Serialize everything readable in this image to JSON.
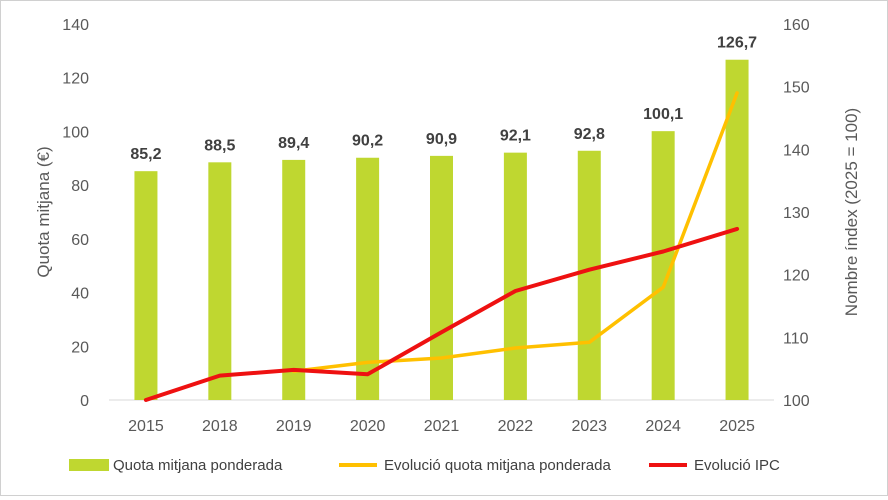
{
  "chart_data": {
    "type": "bar+line",
    "categories": [
      "2015",
      "2018",
      "2019",
      "2020",
      "2021",
      "2022",
      "2023",
      "2024",
      "2025"
    ],
    "bars": {
      "name": "Quota mitjana ponderada",
      "values": [
        85.2,
        88.5,
        89.4,
        90.2,
        90.9,
        92.1,
        92.8,
        100.1,
        126.7
      ],
      "labels": [
        "85,2",
        "88,5",
        "89,4",
        "90,2",
        "90,9",
        "92,1",
        "92,8",
        "100,1",
        "126,7"
      ],
      "color": "#bfd730"
    },
    "lines": [
      {
        "name": "Evolució quota mitjana ponderada",
        "axis": "right",
        "values": [
          null,
          null,
          104.6,
          106.0,
          106.7,
          108.3,
          109.2,
          118.0,
          149.0
        ],
        "color": "#ffc000"
      },
      {
        "name": "Evolució IPC",
        "axis": "right",
        "values": [
          100.0,
          103.9,
          104.8,
          104.1,
          110.8,
          117.4,
          120.8,
          123.7,
          127.3
        ],
        "color": "#ee1111"
      }
    ],
    "y_left": {
      "label": "Quota mitjana (€)",
      "range": [
        0,
        140
      ],
      "ticks": [
        0,
        20,
        40,
        60,
        80,
        100,
        120,
        140
      ]
    },
    "y_right": {
      "label": "Nombre índex (2025 = 100)",
      "range": [
        100,
        160
      ],
      "ticks": [
        100,
        110,
        120,
        130,
        140,
        150,
        160
      ]
    },
    "grid": false,
    "legend_position": "bottom"
  }
}
